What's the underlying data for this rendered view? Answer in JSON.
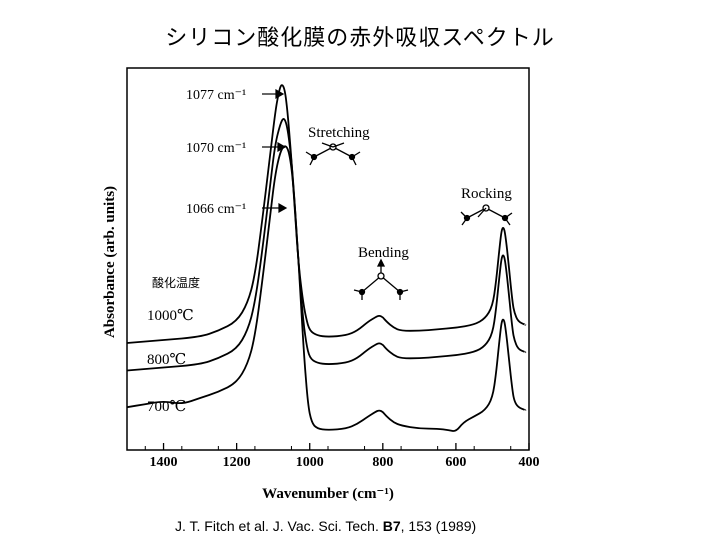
{
  "title": "シリコン酸化膜の赤外吸収スペクトル",
  "citation": {
    "prefix": "J. T. Fitch et al. J. Vac. Sci. Tech. ",
    "volume": "B7",
    "suffix": ", 153 (1989)"
  },
  "chart_data": {
    "type": "line",
    "xlabel": "Wavenumber (cm⁻¹)",
    "ylabel": "Absorbance (arb. units)",
    "xlim": [
      1500,
      400
    ],
    "x_reversed": true,
    "xticks": [
      1400,
      1200,
      1000,
      800,
      600,
      400
    ],
    "xtick_labels": [
      "1400",
      "1200",
      "1000",
      "800",
      "600",
      "400"
    ],
    "y_scale": "arbitrary (curves vertically offset)",
    "legend_title": "酸化温度",
    "series": [
      {
        "name": "1000℃",
        "peak_label": "1077 cm⁻¹",
        "points": [
          [
            1500,
            0.3
          ],
          [
            1400,
            0.31
          ],
          [
            1300,
            0.32
          ],
          [
            1250,
            0.34
          ],
          [
            1200,
            0.37
          ],
          [
            1170,
            0.43
          ],
          [
            1150,
            0.52
          ],
          [
            1130,
            0.7
          ],
          [
            1110,
            0.9
          ],
          [
            1095,
            1.05
          ],
          [
            1085,
            1.12
          ],
          [
            1077,
            1.15
          ],
          [
            1068,
            1.13
          ],
          [
            1060,
            1.05
          ],
          [
            1050,
            0.9
          ],
          [
            1040,
            0.72
          ],
          [
            1030,
            0.55
          ],
          [
            1020,
            0.45
          ],
          [
            1010,
            0.38
          ],
          [
            1000,
            0.34
          ],
          [
            980,
            0.325
          ],
          [
            950,
            0.32
          ],
          [
            900,
            0.325
          ],
          [
            870,
            0.34
          ],
          [
            840,
            0.37
          ],
          [
            820,
            0.385
          ],
          [
            810,
            0.39
          ],
          [
            800,
            0.385
          ],
          [
            790,
            0.37
          ],
          [
            770,
            0.35
          ],
          [
            750,
            0.34
          ],
          [
            700,
            0.34
          ],
          [
            650,
            0.345
          ],
          [
            600,
            0.35
          ],
          [
            550,
            0.36
          ],
          [
            520,
            0.38
          ],
          [
            500,
            0.42
          ],
          [
            490,
            0.5
          ],
          [
            480,
            0.62
          ],
          [
            475,
            0.67
          ],
          [
            470,
            0.68
          ],
          [
            465,
            0.66
          ],
          [
            455,
            0.55
          ],
          [
            445,
            0.43
          ],
          [
            440,
            0.4
          ],
          [
            430,
            0.37
          ],
          [
            410,
            0.36
          ]
        ]
      },
      {
        "name": "800℃",
        "peak_label": "1070 cm⁻¹",
        "points": [
          [
            1500,
            0.21
          ],
          [
            1400,
            0.22
          ],
          [
            1300,
            0.23
          ],
          [
            1250,
            0.25
          ],
          [
            1200,
            0.28
          ],
          [
            1170,
            0.34
          ],
          [
            1150,
            0.43
          ],
          [
            1130,
            0.6
          ],
          [
            1110,
            0.8
          ],
          [
            1095,
            0.95
          ],
          [
            1080,
            1.02
          ],
          [
            1070,
            1.04
          ],
          [
            1060,
            1.0
          ],
          [
            1050,
            0.9
          ],
          [
            1040,
            0.74
          ],
          [
            1030,
            0.55
          ],
          [
            1020,
            0.4
          ],
          [
            1010,
            0.3
          ],
          [
            1000,
            0.25
          ],
          [
            980,
            0.235
          ],
          [
            950,
            0.23
          ],
          [
            900,
            0.235
          ],
          [
            870,
            0.25
          ],
          [
            840,
            0.28
          ],
          [
            820,
            0.295
          ],
          [
            810,
            0.3
          ],
          [
            800,
            0.295
          ],
          [
            790,
            0.28
          ],
          [
            770,
            0.26
          ],
          [
            750,
            0.25
          ],
          [
            700,
            0.25
          ],
          [
            650,
            0.255
          ],
          [
            600,
            0.26
          ],
          [
            550,
            0.27
          ],
          [
            520,
            0.29
          ],
          [
            500,
            0.33
          ],
          [
            490,
            0.41
          ],
          [
            480,
            0.53
          ],
          [
            475,
            0.58
          ],
          [
            470,
            0.59
          ],
          [
            465,
            0.57
          ],
          [
            455,
            0.46
          ],
          [
            445,
            0.34
          ],
          [
            440,
            0.31
          ],
          [
            430,
            0.28
          ],
          [
            410,
            0.27
          ]
        ]
      },
      {
        "name": "700℃",
        "peak_label": "1066 cm⁻¹",
        "points": [
          [
            1500,
            0.09
          ],
          [
            1450,
            0.1
          ],
          [
            1400,
            0.11
          ],
          [
            1350,
            0.1
          ],
          [
            1300,
            0.12
          ],
          [
            1250,
            0.14
          ],
          [
            1200,
            0.17
          ],
          [
            1170,
            0.23
          ],
          [
            1150,
            0.32
          ],
          [
            1130,
            0.5
          ],
          [
            1110,
            0.7
          ],
          [
            1095,
            0.85
          ],
          [
            1080,
            0.93
          ],
          [
            1066,
            0.95
          ],
          [
            1055,
            0.92
          ],
          [
            1045,
            0.82
          ],
          [
            1035,
            0.65
          ],
          [
            1025,
            0.45
          ],
          [
            1015,
            0.25
          ],
          [
            1005,
            0.1
          ],
          [
            995,
            0.04
          ],
          [
            980,
            0.02
          ],
          [
            950,
            0.015
          ],
          [
            900,
            0.02
          ],
          [
            870,
            0.035
          ],
          [
            840,
            0.06
          ],
          [
            820,
            0.075
          ],
          [
            810,
            0.08
          ],
          [
            800,
            0.075
          ],
          [
            790,
            0.06
          ],
          [
            770,
            0.04
          ],
          [
            750,
            0.03
          ],
          [
            700,
            0.02
          ],
          [
            650,
            0.02
          ],
          [
            620,
            0.015
          ],
          [
            600,
            0.01
          ],
          [
            580,
            0.04
          ],
          [
            550,
            0.06
          ],
          [
            520,
            0.08
          ],
          [
            500,
            0.12
          ],
          [
            490,
            0.2
          ],
          [
            480,
            0.32
          ],
          [
            475,
            0.37
          ],
          [
            470,
            0.38
          ],
          [
            465,
            0.36
          ],
          [
            455,
            0.25
          ],
          [
            445,
            0.14
          ],
          [
            440,
            0.11
          ],
          [
            430,
            0.09
          ],
          [
            410,
            0.08
          ]
        ]
      }
    ],
    "annotations": [
      {
        "text": "Stretching",
        "x": 960
      },
      {
        "text": "Bending",
        "x": 825
      },
      {
        "text": "Rocking",
        "x": 520
      }
    ]
  }
}
